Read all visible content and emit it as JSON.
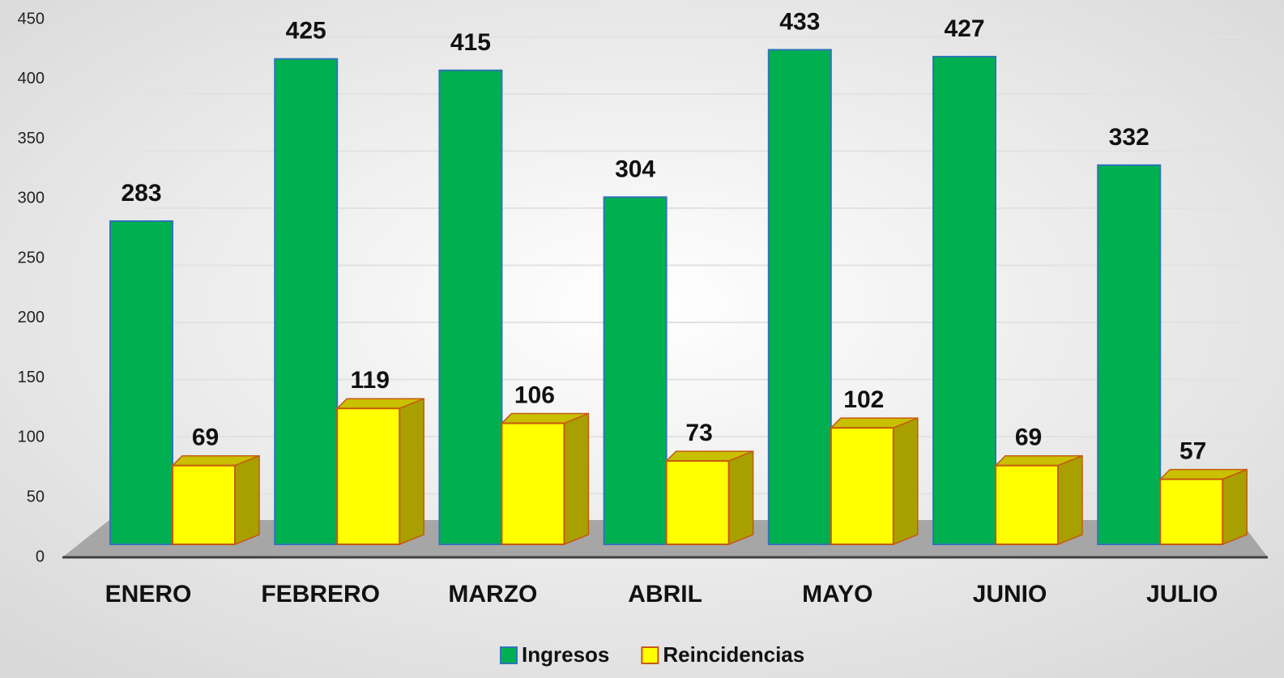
{
  "chart_data": {
    "type": "bar",
    "categories": [
      "ENERO",
      "FEBRERO",
      "MARZO",
      "ABRIL",
      "MAYO",
      "JUNIO",
      "JULIO"
    ],
    "series": [
      {
        "name": "Ingresos",
        "color": "#00b050",
        "values": [
          283,
          425,
          415,
          304,
          433,
          427,
          332
        ]
      },
      {
        "name": "Reincidencias",
        "color": "#ffff00",
        "values": [
          69,
          119,
          106,
          73,
          102,
          69,
          57
        ]
      }
    ],
    "ylim": [
      0,
      450
    ],
    "yticks": [
      0,
      50,
      100,
      150,
      200,
      250,
      300,
      350,
      400,
      450
    ],
    "grid": true,
    "legend": "bottom"
  }
}
